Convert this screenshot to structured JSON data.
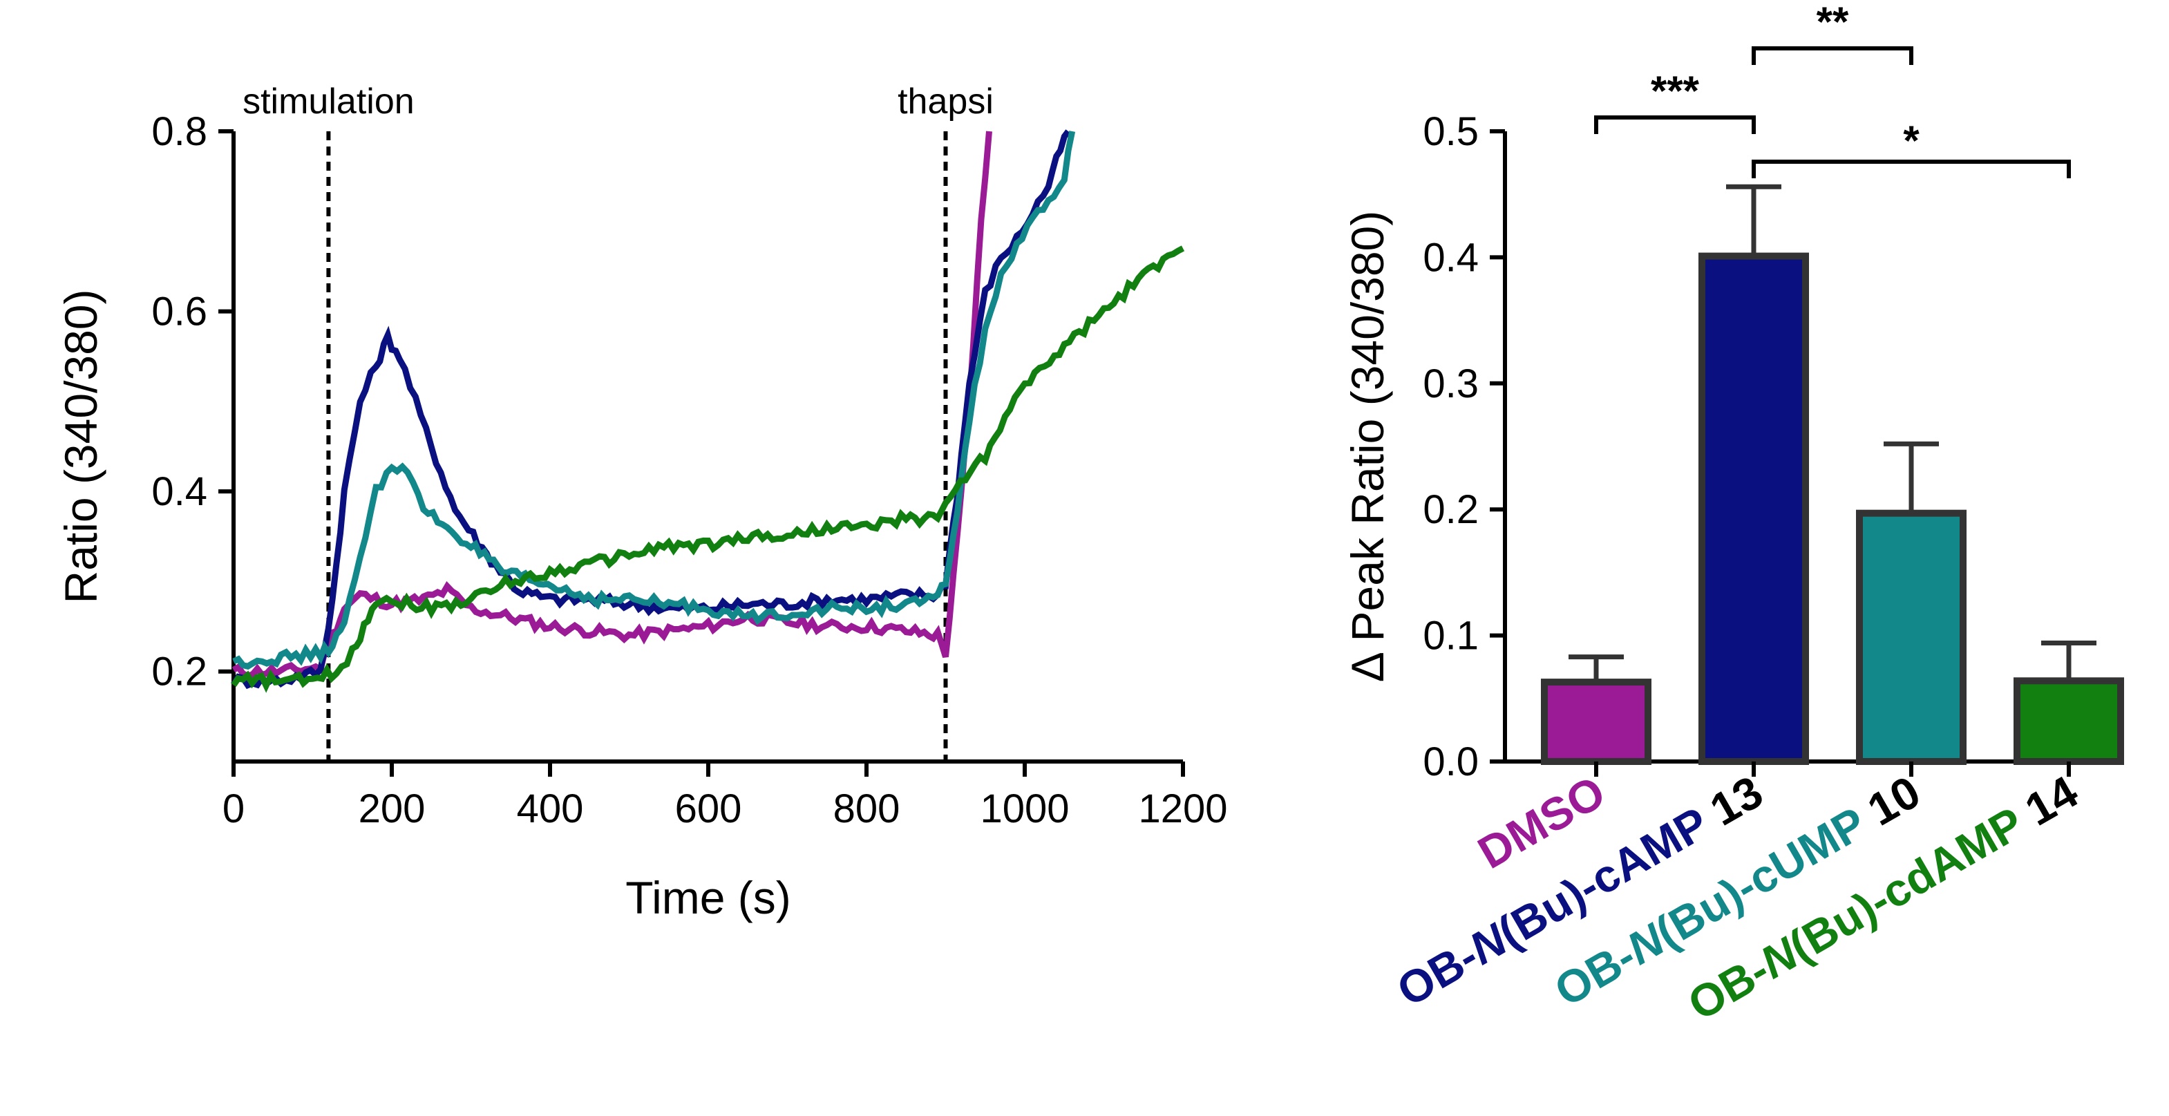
{
  "chart_data": [
    {
      "type": "line",
      "xlabel": "Time (s)",
      "ylabel": "Ratio (340/380)",
      "xlim": [
        0,
        1200
      ],
      "ylim": [
        0.1,
        0.8
      ],
      "x_ticks": [
        "0",
        "200",
        "400",
        "600",
        "800",
        "1000",
        "1200"
      ],
      "y_ticks": [
        "0.2",
        "0.4",
        "0.6",
        "0.8"
      ],
      "events": [
        {
          "x": 120,
          "label": "stimulation"
        },
        {
          "x": 900,
          "label": "thapsi"
        }
      ],
      "series": [
        {
          "name": "DMSO",
          "color": "#9B1B96",
          "x": [
            0,
            60,
            110,
            125,
            140,
            160,
            180,
            200,
            240,
            270,
            300,
            350,
            400,
            450,
            500,
            550,
            600,
            650,
            700,
            750,
            800,
            850,
            890,
            900,
            905,
            915,
            930,
            945,
            955
          ],
          "y": [
            0.2,
            0.2,
            0.205,
            0.24,
            0.27,
            0.285,
            0.28,
            0.275,
            0.28,
            0.29,
            0.27,
            0.26,
            0.25,
            0.245,
            0.24,
            0.245,
            0.25,
            0.26,
            0.255,
            0.25,
            0.25,
            0.245,
            0.24,
            0.22,
            0.26,
            0.35,
            0.5,
            0.7,
            0.8
          ]
        },
        {
          "name": "OB-N(Bu)-cAMP 13",
          "color": "#0A1080",
          "x": [
            0,
            60,
            110,
            125,
            140,
            160,
            180,
            195,
            210,
            230,
            250,
            280,
            320,
            360,
            400,
            450,
            500,
            550,
            600,
            650,
            700,
            750,
            800,
            850,
            890,
            900,
            915,
            930,
            950,
            970,
            990,
            1010,
            1030,
            1045,
            1055
          ],
          "y": [
            0.19,
            0.19,
            0.2,
            0.28,
            0.4,
            0.5,
            0.54,
            0.57,
            0.55,
            0.5,
            0.45,
            0.38,
            0.33,
            0.29,
            0.28,
            0.28,
            0.275,
            0.27,
            0.27,
            0.275,
            0.275,
            0.28,
            0.28,
            0.285,
            0.285,
            0.3,
            0.4,
            0.52,
            0.62,
            0.66,
            0.68,
            0.71,
            0.74,
            0.78,
            0.8
          ]
        },
        {
          "name": "OB-N(Bu)-cUMP 10",
          "color": "#12888A",
          "x": [
            0,
            60,
            110,
            125,
            140,
            160,
            180,
            200,
            220,
            240,
            270,
            300,
            340,
            380,
            420,
            460,
            500,
            550,
            600,
            650,
            700,
            750,
            800,
            850,
            890,
            900,
            915,
            930,
            950,
            970,
            990,
            1010,
            1030,
            1050,
            1060
          ],
          "y": [
            0.21,
            0.215,
            0.22,
            0.23,
            0.25,
            0.33,
            0.4,
            0.43,
            0.42,
            0.38,
            0.36,
            0.34,
            0.31,
            0.3,
            0.29,
            0.28,
            0.28,
            0.275,
            0.27,
            0.26,
            0.265,
            0.27,
            0.27,
            0.275,
            0.28,
            0.3,
            0.38,
            0.48,
            0.58,
            0.64,
            0.67,
            0.7,
            0.72,
            0.75,
            0.8
          ]
        },
        {
          "name": "OB-N(Bu)-cdAMP 14",
          "color": "#118010",
          "x": [
            0,
            100,
            130,
            150,
            165,
            180,
            200,
            250,
            300,
            350,
            400,
            450,
            500,
            550,
            600,
            650,
            700,
            750,
            800,
            850,
            890,
            900,
            950,
            1000,
            1050,
            1100,
            1150,
            1200
          ],
          "y": [
            0.19,
            0.19,
            0.2,
            0.22,
            0.25,
            0.28,
            0.28,
            0.27,
            0.28,
            0.3,
            0.31,
            0.32,
            0.33,
            0.34,
            0.34,
            0.35,
            0.35,
            0.36,
            0.36,
            0.37,
            0.37,
            0.39,
            0.44,
            0.52,
            0.56,
            0.6,
            0.64,
            0.67
          ]
        }
      ]
    },
    {
      "type": "bar",
      "ylabel": "Δ Peak Ratio (340/380)",
      "ylim": [
        0.0,
        0.5
      ],
      "y_ticks": [
        "0.0",
        "0.1",
        "0.2",
        "0.3",
        "0.4",
        "0.5"
      ],
      "categories": [
        {
          "prefix": "DMSO",
          "italic": "",
          "suffix": "",
          "num": "",
          "color": "#9B1B96"
        },
        {
          "prefix": "OB-",
          "italic": "N",
          "suffix": "(Bu)-cAMP",
          "num": "13",
          "color": "#0A1080"
        },
        {
          "prefix": "OB-",
          "italic": "N",
          "suffix": "(Bu)-cUMP",
          "num": "10",
          "color": "#12888A"
        },
        {
          "prefix": "OB-",
          "italic": "N",
          "suffix": "(Bu)-cdAMP",
          "num": "14",
          "color": "#118010"
        }
      ],
      "values": [
        0.063,
        0.401,
        0.197,
        0.064
      ],
      "errors": [
        0.02,
        0.055,
        0.055,
        0.03
      ],
      "significance": [
        {
          "from": 0,
          "to": 1,
          "label": "***"
        },
        {
          "from": 1,
          "to": 2,
          "label": "**"
        },
        {
          "from": 1,
          "to": 3,
          "label": "*"
        }
      ]
    }
  ]
}
